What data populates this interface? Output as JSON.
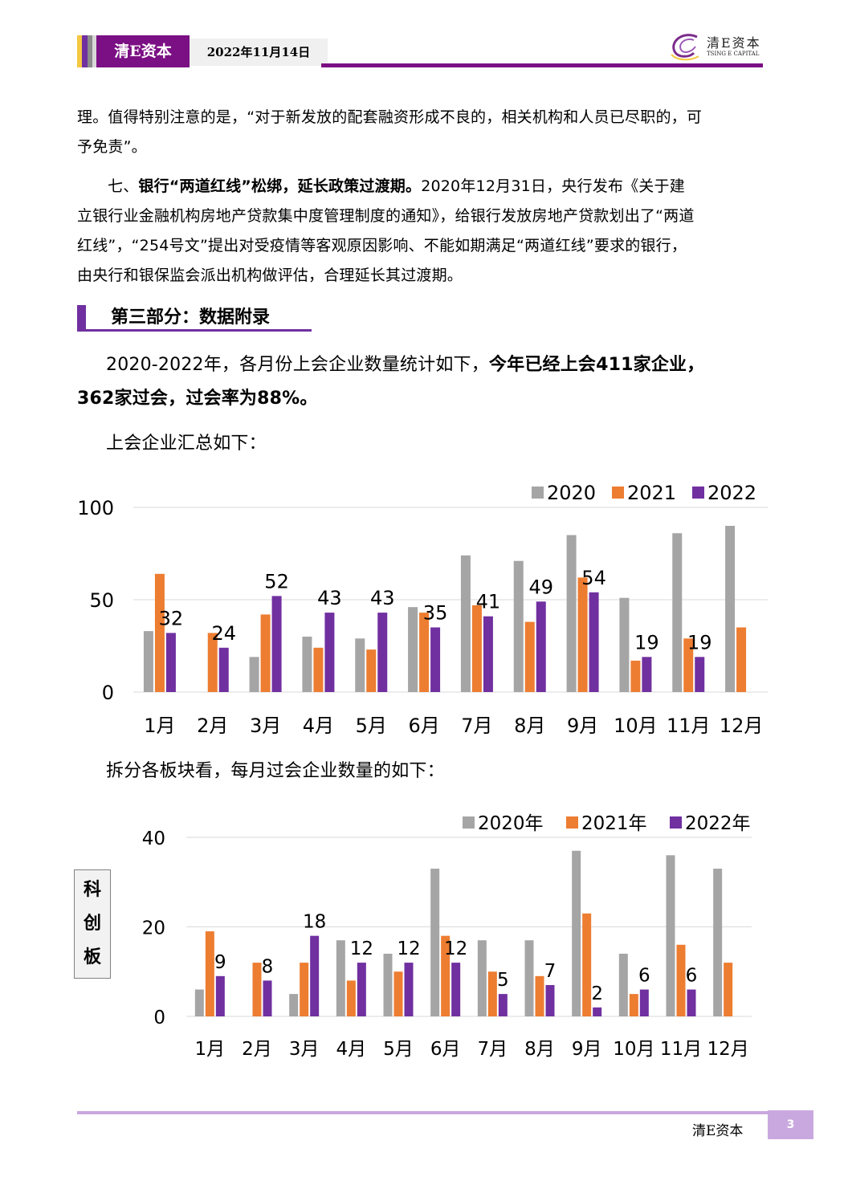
{
  "header": {
    "brand": "清E资本",
    "date": "2022年11月14日",
    "logo_cn": "清E资本",
    "logo_en": "TSING E CAPITAL",
    "accent_color": "#7b0f84",
    "strip_colors": [
      "#f5c842",
      "#7030a0",
      "#8c8c8c",
      "#d0d0d0"
    ]
  },
  "body": {
    "para1_line1": "理。值得特别注意的是，“对于新发放的配套融资形成不良的，相关机构和人员已尽职的，可",
    "para1_line2": "予免责”。",
    "para2_prefix": "七、",
    "para2_bold": "银行“两道红线”松绑，延长政策过渡期。",
    "para2_rest_line1": "2020年12月31日，央行发布《关于建",
    "para2_line2": "立银行业金融机构房地产贷款集中度管理制度的通知》，给银行发放房地产贷款划出了“两道",
    "para2_line3": "红线”，“254号文”提出对受疫情等客观原因影响、不能如期满足“两道红线”要求的银行，",
    "para2_line4": "由央行和银保监会派出机构做评估，合理延长其过渡期。",
    "section_title": "第三部分：数据附录",
    "stats_plain": "2020-2022年，各月份上会企业数量统计如下，",
    "stats_bold_line1": "今年已经上会411家企业，",
    "stats_bold_line2": "362家过会，过会率为88%。",
    "chart1_intro": "上会企业汇总如下：",
    "chart2_intro": "拆分各板块看，每月过会企业数量的如下：",
    "board_label": [
      "科",
      "创",
      "板"
    ]
  },
  "footer": {
    "brand": "清E资本",
    "page_number": "3"
  },
  "chart_data": [
    {
      "type": "bar",
      "title": "上会企业汇总",
      "xlabel": "",
      "ylabel": "",
      "categories": [
        "1月",
        "2月",
        "3月",
        "4月",
        "5月",
        "6月",
        "7月",
        "8月",
        "9月",
        "10月",
        "11月",
        "12月"
      ],
      "ylim": [
        0,
        100
      ],
      "yticks": [
        "0",
        "50",
        "100"
      ],
      "grid": true,
      "legend_position": "top-right",
      "series": [
        {
          "name": "2020",
          "color": "#a5a5a5",
          "values": [
            33,
            null,
            19,
            30,
            29,
            46,
            74,
            71,
            85,
            51,
            86,
            90
          ]
        },
        {
          "name": "2021",
          "color": "#ed7d31",
          "values": [
            64,
            32,
            42,
            24,
            23,
            43,
            47,
            38,
            62,
            17,
            29,
            35
          ]
        },
        {
          "name": "2022",
          "color": "#7030a0",
          "values": [
            32,
            24,
            52,
            43,
            43,
            35,
            41,
            49,
            54,
            19,
            19,
            null
          ],
          "labeled": true
        }
      ]
    },
    {
      "type": "bar",
      "title": "科创板每月过会企业数量",
      "xlabel": "",
      "ylabel": "科创板",
      "categories": [
        "1月",
        "2月",
        "3月",
        "4月",
        "5月",
        "6月",
        "7月",
        "8月",
        "9月",
        "10月",
        "11月",
        "12月"
      ],
      "ylim": [
        0,
        40
      ],
      "yticks": [
        "0",
        "20",
        "40"
      ],
      "grid": true,
      "legend_position": "top-right",
      "series": [
        {
          "name": "2020年",
          "color": "#a5a5a5",
          "values": [
            6,
            null,
            5,
            17,
            14,
            33,
            17,
            17,
            37,
            14,
            36,
            33
          ]
        },
        {
          "name": "2021年",
          "color": "#ed7d31",
          "values": [
            19,
            12,
            12,
            8,
            10,
            18,
            10,
            9,
            23,
            5,
            16,
            12
          ]
        },
        {
          "name": "2022年",
          "color": "#7030a0",
          "values": [
            9,
            8,
            18,
            12,
            12,
            12,
            5,
            7,
            2,
            6,
            6,
            null
          ],
          "labeled": true
        }
      ]
    }
  ]
}
